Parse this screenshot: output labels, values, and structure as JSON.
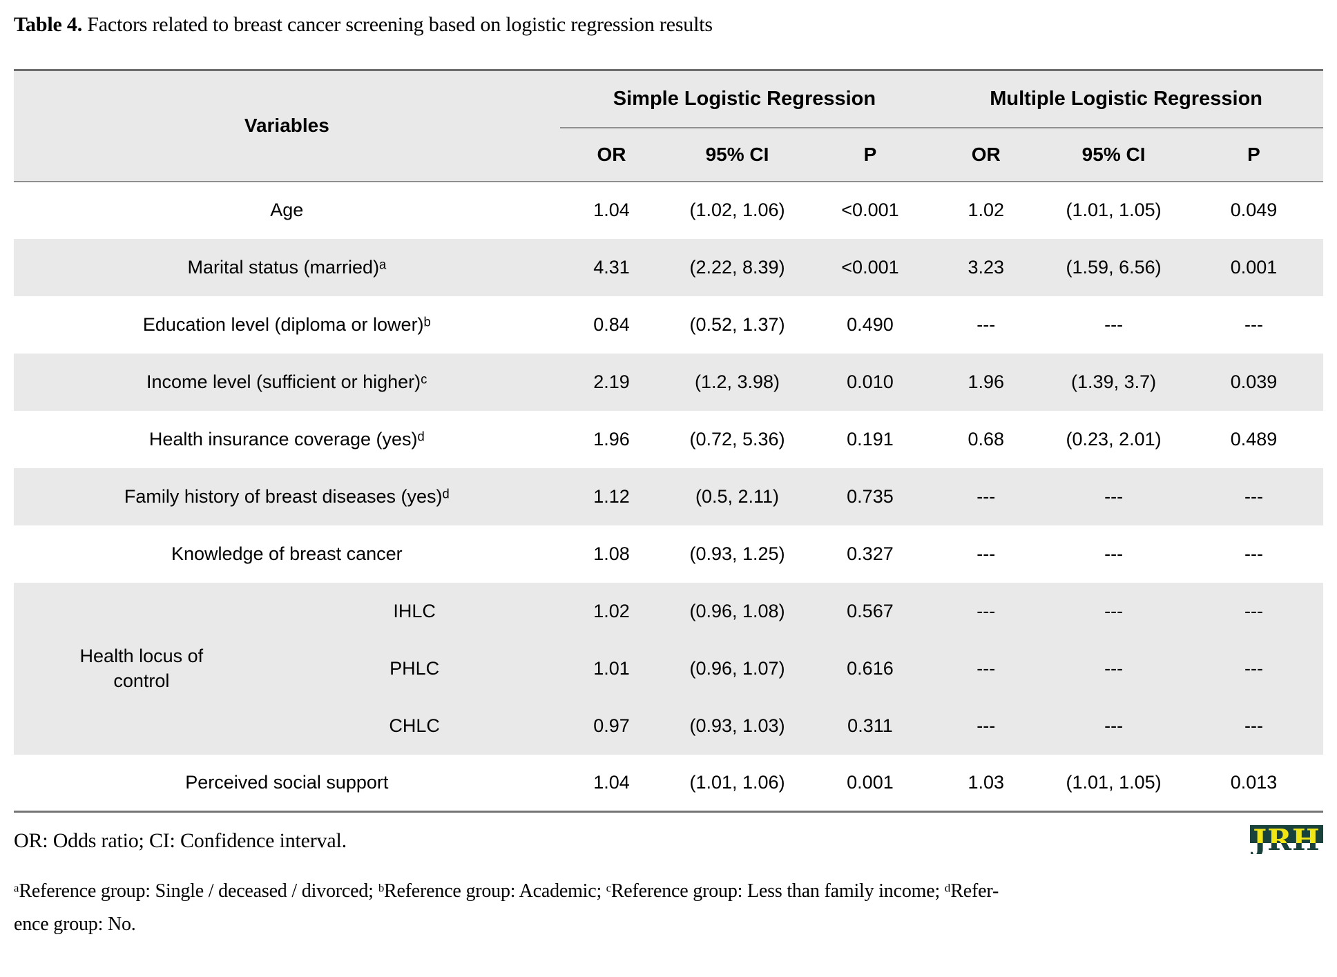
{
  "caption": {
    "label": "Table 4.",
    "text": " Factors related to breast cancer screening based on logistic regression results"
  },
  "table": {
    "variables_header": "Variables",
    "group_headers": [
      "Simple Logistic Regression",
      "Multiple Logistic Regression"
    ],
    "sub_headers": [
      "OR",
      "95% CI",
      "P",
      "OR",
      "95% CI",
      "P"
    ],
    "hlc_group_label": "Health locus of control",
    "rows": [
      {
        "label": "Age",
        "values": [
          "1.04",
          "(1.02, 1.06)",
          "<0.001",
          "1.02",
          "(1.01, 1.05)",
          "0.049"
        ]
      },
      {
        "label": "Marital status (married)ᵃ",
        "values": [
          "4.31",
          "(2.22, 8.39)",
          "<0.001",
          "3.23",
          "(1.59, 6.56)",
          "0.001"
        ]
      },
      {
        "label": "Education level (diploma or lower)ᵇ",
        "values": [
          "0.84",
          "(0.52, 1.37)",
          "0.490",
          "---",
          "---",
          "---"
        ]
      },
      {
        "label": "Income level (sufficient or higher)ᶜ",
        "values": [
          "2.19",
          "(1.2, 3.98)",
          "0.010",
          "1.96",
          "(1.39, 3.7)",
          "0.039"
        ]
      },
      {
        "label": "Health insurance coverage (yes)ᵈ",
        "values": [
          "1.96",
          "(0.72, 5.36)",
          "0.191",
          "0.68",
          "(0.23, 2.01)",
          "0.489"
        ]
      },
      {
        "label": "Family history of breast diseases (yes)ᵈ",
        "values": [
          "1.12",
          "(0.5, 2.11)",
          "0.735",
          "---",
          "---",
          "---"
        ]
      },
      {
        "label": "Knowledge of breast cancer",
        "values": [
          "1.08",
          "(0.93, 1.25)",
          "0.327",
          "---",
          "---",
          "---"
        ]
      },
      {
        "label": "IHLC",
        "values": [
          "1.02",
          "(0.96, 1.08)",
          "0.567",
          "---",
          "---",
          "---"
        ]
      },
      {
        "label": "PHLC",
        "values": [
          "1.01",
          "(0.96, 1.07)",
          "0.616",
          "---",
          "---",
          "---"
        ]
      },
      {
        "label": "CHLC",
        "values": [
          "0.97",
          "(0.93, 1.03)",
          "0.311",
          "---",
          "---",
          "---"
        ]
      },
      {
        "label": "Perceived social support",
        "values": [
          "1.04",
          "(1.01, 1.06)",
          "0.001",
          "1.03",
          "(1.01, 1.05)",
          "0.013"
        ]
      }
    ]
  },
  "footer": {
    "abbrev": "OR: Odds ratio; CI: Confidence interval.",
    "footnote_line1": "ᵃReference group: Single / deceased / divorced; ᵇReference group: Academic; ᶜReference group: Less than family income; ᵈRefer-",
    "footnote_line2": "ence group: No.",
    "logo_text": "JRH"
  },
  "colors": {
    "stripe_gray": "#e9e9e9",
    "border_gray": "#8f8f8f",
    "logo_green": "#18423b",
    "logo_yellow": "#f1e516"
  }
}
